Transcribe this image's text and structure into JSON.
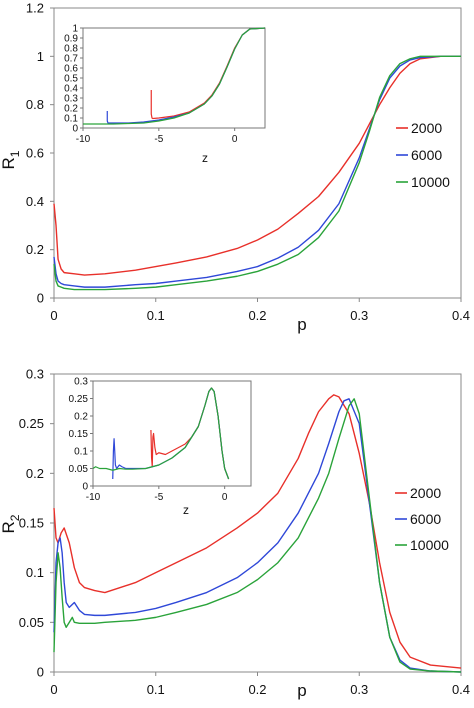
{
  "chart_data": [
    {
      "id": "R1",
      "type": "line",
      "ylabel": "R",
      "ylabel_sub": "1",
      "xlabel": "p",
      "xlim": [
        0,
        0.4
      ],
      "ylim": [
        0,
        1.2
      ],
      "xticks": [
        "0",
        "0.1",
        "0.2",
        "0.3",
        "0.4"
      ],
      "yticks": [
        "0",
        "0.2",
        "0.4",
        "0.6",
        "0.8",
        "1",
        "1.2"
      ],
      "legend_placement": "right",
      "series": [
        {
          "name": "2000",
          "color": "#e8302a",
          "x": [
            0,
            0.002,
            0.004,
            0.007,
            0.01,
            0.02,
            0.03,
            0.05,
            0.08,
            0.1,
            0.12,
            0.15,
            0.18,
            0.2,
            0.22,
            0.24,
            0.26,
            0.28,
            0.3,
            0.31,
            0.32,
            0.33,
            0.34,
            0.35,
            0.36,
            0.38,
            0.4
          ],
          "y": [
            0.39,
            0.3,
            0.16,
            0.12,
            0.105,
            0.1,
            0.095,
            0.1,
            0.115,
            0.13,
            0.145,
            0.17,
            0.205,
            0.24,
            0.285,
            0.35,
            0.42,
            0.52,
            0.64,
            0.72,
            0.8,
            0.87,
            0.93,
            0.97,
            0.99,
            1.0,
            1.0
          ]
        },
        {
          "name": "6000",
          "color": "#2f48d8",
          "x": [
            0,
            0.002,
            0.004,
            0.007,
            0.01,
            0.02,
            0.03,
            0.05,
            0.08,
            0.1,
            0.12,
            0.15,
            0.18,
            0.2,
            0.22,
            0.24,
            0.26,
            0.28,
            0.3,
            0.31,
            0.32,
            0.33,
            0.34,
            0.35,
            0.36,
            0.38,
            0.4
          ],
          "y": [
            0.17,
            0.1,
            0.07,
            0.06,
            0.055,
            0.05,
            0.045,
            0.045,
            0.055,
            0.06,
            0.07,
            0.085,
            0.11,
            0.13,
            0.165,
            0.21,
            0.28,
            0.39,
            0.58,
            0.7,
            0.82,
            0.91,
            0.96,
            0.985,
            0.995,
            1.0,
            1.0
          ]
        },
        {
          "name": "10000",
          "color": "#2aa33a",
          "x": [
            0,
            0.002,
            0.004,
            0.007,
            0.01,
            0.02,
            0.03,
            0.05,
            0.08,
            0.1,
            0.12,
            0.15,
            0.18,
            0.2,
            0.22,
            0.24,
            0.26,
            0.28,
            0.3,
            0.31,
            0.32,
            0.33,
            0.34,
            0.35,
            0.36,
            0.38,
            0.4
          ],
          "y": [
            0.14,
            0.07,
            0.05,
            0.045,
            0.04,
            0.035,
            0.035,
            0.035,
            0.04,
            0.045,
            0.055,
            0.07,
            0.09,
            0.11,
            0.14,
            0.18,
            0.25,
            0.36,
            0.56,
            0.69,
            0.83,
            0.92,
            0.97,
            0.99,
            1.0,
            1.0,
            1.0
          ]
        }
      ],
      "inset": {
        "xlabel": "z",
        "xlim": [
          -10,
          2
        ],
        "ylim": [
          0,
          1
        ],
        "xticks": [
          "-10",
          "-5",
          "0"
        ],
        "yticks": [
          "0",
          "0.1",
          "0.2",
          "0.3",
          "0.4",
          "0.5",
          "0.6",
          "0.7",
          "0.8",
          "0.9",
          "1"
        ],
        "series": [
          {
            "name": "2000",
            "color": "#e8302a",
            "x": [
              -5.5,
              -5.5,
              -5.45,
              -5.4,
              -5,
              -4,
              -3,
              -2,
              -1.5,
              -1,
              -0.5,
              0,
              0.5,
              1,
              2
            ],
            "y": [
              0.38,
              0.14,
              0.1,
              0.095,
              0.1,
              0.12,
              0.16,
              0.25,
              0.33,
              0.45,
              0.62,
              0.8,
              0.93,
              0.99,
              1.0
            ]
          },
          {
            "name": "6000",
            "color": "#2f48d8",
            "x": [
              -8.4,
              -8.4,
              -8.35,
              -8,
              -7,
              -6,
              -5,
              -4,
              -3,
              -2,
              -1.5,
              -1,
              -0.5,
              0,
              0.5,
              1,
              2
            ],
            "y": [
              0.17,
              0.07,
              0.05,
              0.05,
              0.05,
              0.06,
              0.08,
              0.11,
              0.15,
              0.24,
              0.32,
              0.44,
              0.61,
              0.79,
              0.93,
              0.99,
              1.0
            ]
          },
          {
            "name": "10000",
            "color": "#2aa33a",
            "x": [
              -10,
              -9,
              -8,
              -7,
              -6,
              -5,
              -4,
              -3,
              -2,
              -1.5,
              -1,
              -0.5,
              0,
              0.5,
              1,
              2
            ],
            "y": [
              0.04,
              0.04,
              0.04,
              0.045,
              0.05,
              0.07,
              0.1,
              0.15,
              0.24,
              0.32,
              0.44,
              0.61,
              0.79,
              0.93,
              0.99,
              1.0
            ]
          }
        ]
      }
    },
    {
      "id": "R2",
      "type": "line",
      "ylabel": "R",
      "ylabel_sub": "2",
      "xlabel": "p",
      "xlim": [
        0,
        0.4
      ],
      "ylim": [
        0,
        0.3
      ],
      "xticks": [
        "0",
        "0.1",
        "0.2",
        "0.3",
        "0.4"
      ],
      "yticks": [
        "0",
        "0.05",
        "0.1",
        "0.15",
        "0.2",
        "0.25",
        "0.3"
      ],
      "legend_placement": "right",
      "series": [
        {
          "name": "2000",
          "color": "#e8302a",
          "x": [
            0,
            0.002,
            0.004,
            0.007,
            0.01,
            0.015,
            0.02,
            0.025,
            0.03,
            0.04,
            0.05,
            0.08,
            0.1,
            0.12,
            0.15,
            0.18,
            0.2,
            0.22,
            0.24,
            0.25,
            0.26,
            0.27,
            0.275,
            0.28,
            0.29,
            0.3,
            0.31,
            0.32,
            0.33,
            0.34,
            0.35,
            0.37,
            0.4
          ],
          "y": [
            0.165,
            0.135,
            0.13,
            0.14,
            0.145,
            0.13,
            0.105,
            0.09,
            0.085,
            0.082,
            0.08,
            0.09,
            0.1,
            0.11,
            0.125,
            0.145,
            0.16,
            0.18,
            0.215,
            0.24,
            0.262,
            0.275,
            0.279,
            0.277,
            0.26,
            0.22,
            0.17,
            0.11,
            0.06,
            0.03,
            0.015,
            0.007,
            0.004
          ]
        },
        {
          "name": "6000",
          "color": "#2f48d8",
          "x": [
            0,
            0.002,
            0.004,
            0.006,
            0.008,
            0.01,
            0.012,
            0.015,
            0.02,
            0.025,
            0.03,
            0.04,
            0.05,
            0.08,
            0.1,
            0.12,
            0.15,
            0.18,
            0.2,
            0.22,
            0.24,
            0.26,
            0.27,
            0.28,
            0.285,
            0.29,
            0.3,
            0.31,
            0.32,
            0.33,
            0.34,
            0.35,
            0.37,
            0.4
          ],
          "y": [
            0.04,
            0.11,
            0.13,
            0.135,
            0.12,
            0.09,
            0.07,
            0.065,
            0.07,
            0.062,
            0.058,
            0.057,
            0.057,
            0.06,
            0.064,
            0.07,
            0.08,
            0.095,
            0.11,
            0.13,
            0.16,
            0.2,
            0.23,
            0.262,
            0.273,
            0.275,
            0.25,
            0.17,
            0.09,
            0.035,
            0.012,
            0.004,
            0.001,
            0.0
          ]
        },
        {
          "name": "10000",
          "color": "#2aa33a",
          "x": [
            0,
            0.002,
            0.004,
            0.006,
            0.008,
            0.01,
            0.012,
            0.015,
            0.018,
            0.02,
            0.025,
            0.03,
            0.04,
            0.05,
            0.08,
            0.1,
            0.12,
            0.15,
            0.18,
            0.2,
            0.22,
            0.24,
            0.26,
            0.27,
            0.28,
            0.29,
            0.295,
            0.3,
            0.31,
            0.32,
            0.33,
            0.34,
            0.35,
            0.37,
            0.4
          ],
          "y": [
            0.02,
            0.09,
            0.12,
            0.105,
            0.075,
            0.05,
            0.045,
            0.05,
            0.055,
            0.05,
            0.049,
            0.049,
            0.049,
            0.05,
            0.052,
            0.055,
            0.06,
            0.068,
            0.08,
            0.093,
            0.11,
            0.135,
            0.175,
            0.2,
            0.235,
            0.268,
            0.275,
            0.26,
            0.175,
            0.09,
            0.035,
            0.01,
            0.003,
            0.001,
            0.0
          ]
        }
      ],
      "inset": {
        "xlabel": "z",
        "xlim": [
          -10,
          2
        ],
        "ylim": [
          0,
          0.3
        ],
        "xticks": [
          "-10",
          "-5",
          "0"
        ],
        "yticks": [
          "0",
          "0.05",
          "0.1",
          "0.15",
          "0.2",
          "0.25",
          "0.3"
        ],
        "series": [
          {
            "name": "2000",
            "color": "#e8302a",
            "x": [
              -5.6,
              -5.55,
              -5.5,
              -5.45,
              -5.4,
              -5.3,
              -5.2,
              -5,
              -4.5,
              -4,
              -3,
              -2.5,
              -2,
              -1.5,
              -1.2,
              -1,
              -0.8,
              -0.5,
              -0.2,
              0,
              0.3
            ],
            "y": [
              0.16,
              0.08,
              0.055,
              0.14,
              0.15,
              0.11,
              0.09,
              0.095,
              0.09,
              0.1,
              0.12,
              0.14,
              0.17,
              0.23,
              0.27,
              0.28,
              0.27,
              0.2,
              0.1,
              0.05,
              0.02
            ]
          },
          {
            "name": "6000",
            "color": "#2f48d8",
            "x": [
              -8.5,
              -8.45,
              -8.4,
              -8.35,
              -8.3,
              -8.2,
              -8,
              -7.8,
              -7.5,
              -7,
              -6,
              -5,
              -4,
              -3,
              -2.5,
              -2,
              -1.5,
              -1.2,
              -1,
              -0.8,
              -0.5,
              -0.2,
              0,
              0.3
            ],
            "y": [
              0.02,
              0.1,
              0.135,
              0.1,
              0.06,
              0.05,
              0.06,
              0.055,
              0.05,
              0.05,
              0.05,
              0.06,
              0.08,
              0.11,
              0.14,
              0.17,
              0.23,
              0.27,
              0.28,
              0.27,
              0.2,
              0.1,
              0.05,
              0.02
            ]
          },
          {
            "name": "10000",
            "color": "#2aa33a",
            "x": [
              -10,
              -9.8,
              -9.5,
              -9,
              -8.5,
              -8,
              -7.5,
              -7,
              -6,
              -5,
              -4,
              -3,
              -2.5,
              -2,
              -1.5,
              -1.2,
              -1,
              -0.8,
              -0.5,
              -0.2,
              0,
              0.3
            ],
            "y": [
              0.05,
              0.055,
              0.05,
              0.05,
              0.045,
              0.05,
              0.048,
              0.048,
              0.05,
              0.06,
              0.08,
              0.11,
              0.14,
              0.17,
              0.23,
              0.27,
              0.28,
              0.27,
              0.2,
              0.1,
              0.05,
              0.02
            ]
          }
        ]
      }
    }
  ]
}
